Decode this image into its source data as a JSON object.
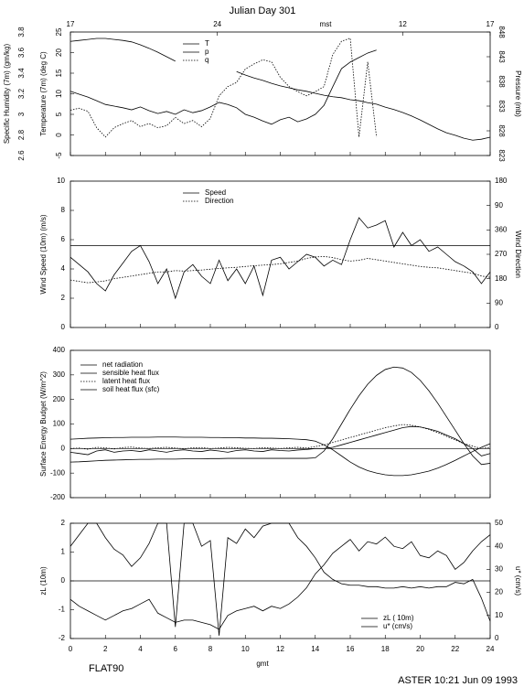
{
  "figure": {
    "title": "Julian Day 301",
    "footer_left": "FLAT90",
    "footer_right": "ASTER 10:21 Jun 09 1993"
  },
  "chart_data": [
    {
      "type": "line",
      "ylabel": "Temperature (7m) (deg C)",
      "y2label": "Pressure (mb)",
      "y3label": "Specific Humidity (7m) (gm/kg)",
      "x2label": "mst",
      "x2ticks": [
        {
          "value": 0,
          "label": "17"
        },
        {
          "value": 8.4,
          "label": "24"
        },
        {
          "value": 19,
          "label": "12"
        },
        {
          "value": 24,
          "label": "17"
        }
      ],
      "xlim": [
        0,
        24
      ],
      "xticks": [
        0,
        2,
        4,
        6,
        8,
        10,
        12,
        14,
        16,
        18,
        20,
        22,
        24
      ],
      "ylim": [
        -5,
        25
      ],
      "yticks": [
        -5,
        0,
        5,
        10,
        15,
        20,
        25
      ],
      "y2lim": [
        823,
        848
      ],
      "y2ticks": [
        823,
        828,
        833,
        838,
        843,
        848
      ],
      "y3lim": [
        2.6,
        3.8
      ],
      "y3ticks": [
        2.6,
        2.8,
        3,
        3.2,
        3.4,
        3.6,
        3.8
      ],
      "legend": "upper center",
      "x": [
        0,
        0.5,
        1,
        1.5,
        2,
        2.5,
        3,
        3.5,
        4,
        4.5,
        5,
        5.5,
        6,
        6.5,
        7,
        7.5,
        8,
        8.5,
        9,
        9.5,
        10,
        10.5,
        11,
        11.5,
        12,
        12.5,
        13,
        13.5,
        14,
        14.5,
        15,
        15.5,
        16,
        16.5,
        17,
        17.5,
        18,
        18.5,
        19,
        19.5,
        20,
        20.5,
        21,
        21.5,
        22,
        22.5,
        23,
        23.5,
        24
      ],
      "series": [
        {
          "name": "T",
          "color": "#000000",
          "style": "solid",
          "axis": "y",
          "values": [
            10.6,
            9.9,
            9.2,
            8.3,
            7.4,
            7.0,
            6.6,
            6.1,
            6.8,
            5.9,
            5.2,
            5.7,
            5.0,
            6.1,
            5.4,
            5.9,
            6.8,
            7.9,
            7.4,
            6.6,
            5.0,
            4.3,
            3.4,
            2.6,
            3.7,
            4.3,
            3.2,
            3.9,
            5.0,
            7.2,
            11.7,
            16.1,
            17.7,
            18.8,
            19.9,
            20.6,
            null,
            null,
            null,
            null,
            null,
            null,
            null,
            null,
            null,
            null,
            null,
            null,
            null
          ]
        },
        {
          "name": "p",
          "color": "#000000",
          "style": "solid",
          "axis": "y2",
          "values": [
            846.1,
            846.3,
            846.5,
            846.7,
            846.7,
            846.5,
            846.3,
            846.0,
            845.4,
            844.7,
            843.9,
            843.0,
            842.1,
            null,
            null,
            null,
            null,
            null,
            null,
            840.0,
            839.3,
            838.7,
            838.2,
            837.6,
            837.1,
            836.7,
            836.3,
            836.0,
            835.6,
            835.2,
            834.9,
            834.7,
            834.3,
            834.1,
            833.7,
            833.4,
            832.8,
            832.3,
            831.7,
            831.0,
            830.2,
            829.3,
            828.4,
            827.6,
            827.1,
            826.5,
            826.1,
            826.3,
            826.7
          ]
        },
        {
          "name": "q",
          "color": "#000000",
          "style": "dotted",
          "axis": "y3",
          "values": [
            3.04,
            3.06,
            3.03,
            2.87,
            2.78,
            2.87,
            2.91,
            2.94,
            2.88,
            2.91,
            2.87,
            2.89,
            2.97,
            2.91,
            2.94,
            2.88,
            2.96,
            3.18,
            3.27,
            3.31,
            3.44,
            3.49,
            3.53,
            3.51,
            3.36,
            3.27,
            3.22,
            3.18,
            3.22,
            3.27,
            3.58,
            3.71,
            3.74,
            2.78,
            3.51,
            2.78,
            null,
            null,
            null,
            null,
            null,
            null,
            null,
            null,
            null,
            null,
            null,
            null,
            null
          ]
        }
      ]
    },
    {
      "type": "line",
      "ylabel": "Wind Speed (10m) (m/s)",
      "y2label": "Wind Direction",
      "xlim": [
        0,
        24
      ],
      "xticks": [
        0,
        2,
        4,
        6,
        8,
        10,
        12,
        14,
        16,
        18,
        20,
        22,
        24
      ],
      "ylim": [
        0,
        10
      ],
      "yticks": [
        0,
        2,
        4,
        6,
        8,
        10
      ],
      "y2lim": [
        0,
        540
      ],
      "y2ticks": [
        0,
        90,
        180,
        270,
        360,
        {
          "value": 450,
          "label": "90"
        },
        {
          "value": 540,
          "label": "180"
        }
      ],
      "hline": 5.6,
      "legend": "upper center",
      "x": [
        0,
        0.5,
        1,
        1.5,
        2,
        2.5,
        3,
        3.5,
        4,
        4.5,
        5,
        5.5,
        6,
        6.5,
        7,
        7.5,
        8,
        8.5,
        9,
        9.5,
        10,
        10.5,
        11,
        11.5,
        12,
        12.5,
        13,
        13.5,
        14,
        14.5,
        15,
        15.5,
        16,
        16.5,
        17,
        17.5,
        18,
        18.5,
        19,
        19.5,
        20,
        20.5,
        21,
        21.5,
        22,
        22.5,
        23,
        23.5,
        24
      ],
      "series": [
        {
          "name": "Speed",
          "color": "#000000",
          "style": "solid",
          "axis": "y",
          "values": [
            4.8,
            4.3,
            3.8,
            3.0,
            2.5,
            3.6,
            4.4,
            5.2,
            5.6,
            4.5,
            3.0,
            4.0,
            2.0,
            3.8,
            4.3,
            3.5,
            3.0,
            4.6,
            3.2,
            4.0,
            3.0,
            4.2,
            2.2,
            4.6,
            4.8,
            4.0,
            4.5,
            5.0,
            4.8,
            4.2,
            4.6,
            4.3,
            6.0,
            7.5,
            6.8,
            7.0,
            7.3,
            5.5,
            6.5,
            5.6,
            6.0,
            5.2,
            5.5,
            5.0,
            4.5,
            4.2,
            3.8,
            3.0,
            3.8
          ]
        },
        {
          "name": "Direction",
          "color": "#000000",
          "style": "dotted",
          "axis": "y2",
          "values": [
            175,
            170,
            165,
            168,
            172,
            180,
            185,
            190,
            195,
            200,
            205,
            205,
            210,
            208,
            210,
            212,
            215,
            218,
            220,
            222,
            225,
            228,
            230,
            232,
            235,
            240,
            245,
            255,
            260,
            262,
            258,
            250,
            245,
            248,
            255,
            250,
            245,
            240,
            235,
            230,
            225,
            222,
            220,
            215,
            210,
            205,
            200,
            190,
            185
          ]
        }
      ]
    },
    {
      "type": "line",
      "ylabel": "Surface Energy Budget (W/m^2)",
      "xlim": [
        0,
        24
      ],
      "xticks": [
        0,
        2,
        4,
        6,
        8,
        10,
        12,
        14,
        16,
        18,
        20,
        22,
        24
      ],
      "ylim": [
        -200,
        400
      ],
      "yticks": [
        -200,
        -100,
        0,
        100,
        200,
        300,
        400
      ],
      "hline": 0,
      "legend": "upper left",
      "x": [
        0,
        0.5,
        1,
        1.5,
        2,
        2.5,
        3,
        3.5,
        4,
        4.5,
        5,
        5.5,
        6,
        6.5,
        7,
        7.5,
        8,
        8.5,
        9,
        9.5,
        10,
        10.5,
        11,
        11.5,
        12,
        12.5,
        13,
        13.5,
        14,
        14.5,
        15,
        15.5,
        16,
        16.5,
        17,
        17.5,
        18,
        18.5,
        19,
        19.5,
        20,
        20.5,
        21,
        21.5,
        22,
        22.5,
        23,
        23.5,
        24
      ],
      "series": [
        {
          "name": "net radiation",
          "color": "#000000",
          "style": "solid",
          "axis": "y",
          "values": [
            -55,
            -54,
            -52,
            -50,
            -48,
            -47,
            -46,
            -45,
            -44,
            -44,
            -43,
            -43,
            -43,
            -42,
            -42,
            -42,
            -41,
            -41,
            -40,
            -40,
            -40,
            -40,
            -40,
            -40,
            -40,
            -40,
            -40,
            -40,
            -38,
            -10,
            40,
            100,
            160,
            215,
            262,
            298,
            322,
            332,
            328,
            310,
            278,
            235,
            185,
            130,
            75,
            20,
            -30,
            -65,
            -60
          ]
        },
        {
          "name": "sensible heat flux",
          "color": "#000000",
          "style": "solid",
          "axis": "y",
          "values": [
            -15,
            -20,
            -25,
            -10,
            -5,
            -15,
            -10,
            -8,
            -12,
            -5,
            -10,
            -15,
            -8,
            -5,
            -10,
            -12,
            -6,
            -10,
            -15,
            -8,
            -5,
            -10,
            -12,
            -5,
            -8,
            -10,
            -6,
            -4,
            0,
            0,
            5,
            15,
            25,
            35,
            45,
            55,
            65,
            75,
            85,
            90,
            88,
            80,
            70,
            55,
            40,
            20,
            0,
            -30,
            -20
          ]
        },
        {
          "name": "latent heat flux",
          "color": "#000000",
          "style": "dotted",
          "axis": "y",
          "values": [
            0,
            2,
            -3,
            5,
            3,
            -2,
            4,
            6,
            2,
            0,
            3,
            5,
            2,
            -1,
            3,
            4,
            0,
            2,
            5,
            3,
            1,
            0,
            4,
            2,
            0,
            3,
            5,
            2,
            8,
            15,
            25,
            35,
            45,
            55,
            65,
            75,
            85,
            92,
            98,
            95,
            88,
            78,
            65,
            50,
            35,
            20,
            10,
            0,
            5
          ]
        },
        {
          "name": "soil heat flux (sfc)",
          "color": "#000000",
          "style": "solid",
          "axis": "y",
          "values": [
            38,
            40,
            42,
            43,
            44,
            45,
            45,
            46,
            46,
            46,
            47,
            47,
            47,
            46,
            46,
            46,
            45,
            45,
            44,
            44,
            43,
            43,
            42,
            42,
            41,
            40,
            38,
            36,
            30,
            15,
            -5,
            -30,
            -55,
            -75,
            -90,
            -100,
            -107,
            -110,
            -110,
            -107,
            -100,
            -92,
            -80,
            -65,
            -48,
            -30,
            -12,
            5,
            20
          ]
        }
      ]
    },
    {
      "type": "line",
      "ylabel": "zL (10m)",
      "y2label": "u* (cm/s)",
      "xlabel": "gmt",
      "xlim": [
        0,
        24
      ],
      "xticks": [
        0,
        2,
        4,
        6,
        8,
        10,
        12,
        14,
        16,
        18,
        20,
        22,
        24
      ],
      "ylim": [
        -2,
        2
      ],
      "yticks": [
        -2,
        -1,
        0,
        1,
        2
      ],
      "y2lim": [
        0,
        50
      ],
      "y2ticks": [
        0,
        10,
        20,
        30,
        40,
        50
      ],
      "hline": 0,
      "legend": "lower right",
      "x": [
        0,
        0.5,
        1,
        1.5,
        2,
        2.5,
        3,
        3.5,
        4,
        4.5,
        5,
        5.5,
        6,
        6.5,
        7,
        7.5,
        8,
        8.5,
        9,
        9.5,
        10,
        10.5,
        11,
        11.5,
        12,
        12.5,
        13,
        13.5,
        14,
        14.5,
        15,
        15.5,
        16,
        16.5,
        17,
        17.5,
        18,
        18.5,
        19,
        19.5,
        20,
        20.5,
        21,
        21.5,
        22,
        22.5,
        23,
        23.5,
        24
      ],
      "series": [
        {
          "name": "zL ( 10m)",
          "color": "#000000",
          "style": "solid",
          "axis": "y",
          "values": [
            1.2,
            1.6,
            2,
            2,
            1.5,
            1.1,
            0.9,
            0.5,
            0.8,
            1.3,
            2,
            2,
            -1.6,
            2,
            2,
            1.2,
            1.4,
            -1.9,
            1.5,
            1.3,
            1.8,
            1.5,
            1.9,
            2,
            2,
            2,
            1.5,
            1.2,
            0.8,
            0.3,
            0.05,
            -0.1,
            -0.15,
            -0.15,
            -0.2,
            -0.2,
            -0.25,
            -0.25,
            -0.2,
            -0.25,
            -0.2,
            -0.25,
            -0.2,
            -0.2,
            -0.05,
            -0.1,
            0.05,
            -0.6,
            -1.4
          ]
        },
        {
          "name": "u* (cm/s)",
          "color": "#000000",
          "style": "solid",
          "axis": "y2",
          "values": [
            17,
            14,
            12,
            10,
            8,
            10,
            12,
            13,
            15,
            17,
            11,
            9,
            7,
            8,
            8,
            7,
            6,
            4,
            10,
            12,
            13,
            14,
            12,
            14,
            13,
            15,
            18,
            22,
            28,
            32,
            37,
            40,
            43,
            38,
            42,
            41,
            44,
            40,
            39,
            42,
            36,
            35,
            38,
            36,
            30,
            33,
            38,
            42,
            45
          ]
        }
      ]
    }
  ]
}
